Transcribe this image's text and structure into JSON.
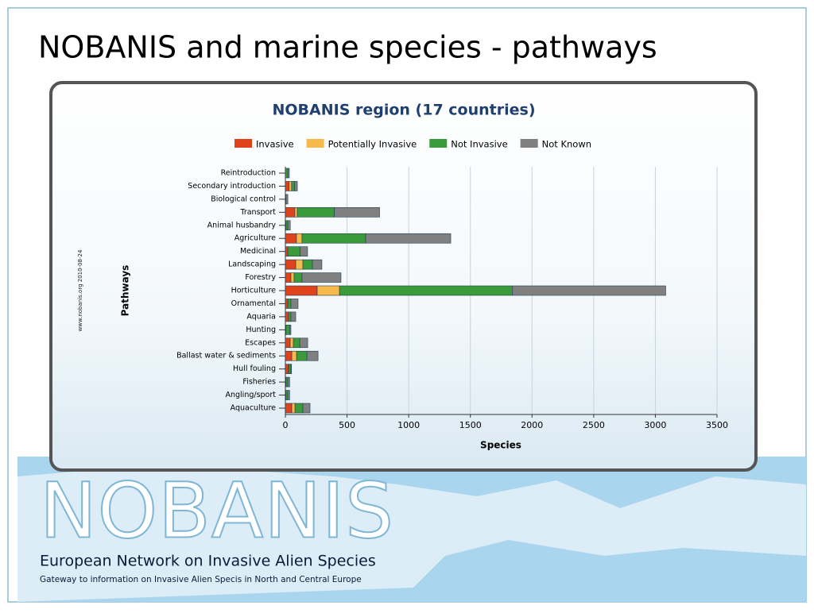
{
  "slide_title": "NOBANIS and marine species - pathways",
  "chart_data": {
    "type": "stacked-barh",
    "title": "NOBANIS region (17 countries)",
    "x_label": "Species",
    "y_label": "Pathways",
    "source": "www.nobanis.org 2010-08-24",
    "categories": [
      "Reintroduction",
      "Secondary introduction",
      "Biological control",
      "Transport",
      "Animal husbandry",
      "Agriculture",
      "Medicinal",
      "Landscaping",
      "Forestry",
      "Horticulture",
      "Ornamental",
      "Aquaria",
      "Hunting",
      "Escapes",
      "Ballast water & sediments",
      "Hull fouling",
      "Fisheries",
      "Angling/sport",
      "Aquaculture"
    ],
    "series": [
      {
        "name": "Invasive",
        "color": "#e0421c",
        "values": [
          0,
          30,
          0,
          77,
          5,
          90,
          20,
          84,
          45,
          258,
          20,
          25,
          5,
          39,
          52,
          25,
          5,
          5,
          52
        ]
      },
      {
        "name": "Potentially Invasive",
        "color": "#f6b94c",
        "values": [
          0,
          20,
          0,
          20,
          0,
          45,
          0,
          58,
          26,
          181,
          0,
          0,
          0,
          26,
          39,
          5,
          0,
          0,
          26
        ]
      },
      {
        "name": "Not Invasive",
        "color": "#3b9a3a",
        "values": [
          20,
          25,
          5,
          300,
          15,
          516,
          100,
          77,
          64,
          1400,
          25,
          20,
          30,
          52,
          84,
          15,
          15,
          15,
          64
        ]
      },
      {
        "name": "Not Known",
        "color": "#808080",
        "values": [
          12,
          22,
          15,
          367,
          20,
          690,
          60,
          77,
          316,
          1245,
          58,
          39,
          10,
          64,
          90,
          5,
          15,
          15,
          58
        ]
      }
    ],
    "xlim": [
      0,
      3500
    ],
    "xticks": [
      0,
      500,
      1000,
      1500,
      2000,
      2500,
      3000,
      3500
    ],
    "grid": true,
    "legend": "top"
  },
  "footer": {
    "logo": "NOBANIS",
    "network": "European Network on Invasive Alien Species",
    "tagline": "Gateway to information on Invasive Alien Specis in North and Central Europe"
  }
}
